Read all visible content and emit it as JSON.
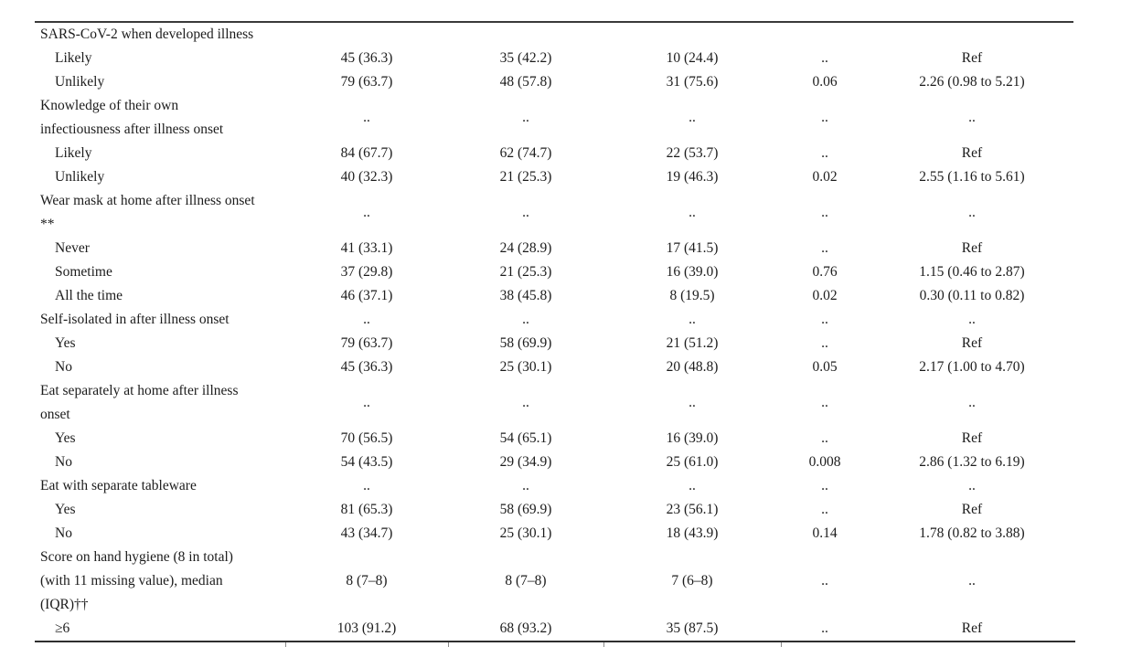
{
  "document": {
    "kind": "journal-article-table-fragment",
    "text_color": "#1c1c1c",
    "rule_color": "#2e2e2e",
    "background": "#ffffff"
  },
  "table": {
    "columns_note": "column headers are cropped out of view; five data columns follow the row label",
    "rows": [
      {
        "label": "SARS-CoV-2 when developed illness",
        "indent": false,
        "lines": 1,
        "cells": [
          "",
          "",
          "",
          "",
          ""
        ]
      },
      {
        "label": "Likely",
        "indent": true,
        "lines": 1,
        "cells": [
          "45 (36.3)",
          "35 (42.2)",
          "10 (24.4)",
          "..",
          "Ref"
        ]
      },
      {
        "label": "Unlikely",
        "indent": true,
        "lines": 1,
        "cells": [
          "79 (63.7)",
          "48 (57.8)",
          "31 (75.6)",
          "0.06",
          "2.26 (0.98 to 5.21)"
        ]
      },
      {
        "label": "Knowledge of their own\ninfectiousness after illness onset",
        "indent": false,
        "lines": 2,
        "cells": [
          "..",
          "..",
          "..",
          "..",
          ".."
        ]
      },
      {
        "label": "Likely",
        "indent": true,
        "lines": 1,
        "cells": [
          "84 (67.7)",
          "62 (74.7)",
          "22 (53.7)",
          "..",
          "Ref"
        ]
      },
      {
        "label": "Unlikely",
        "indent": true,
        "lines": 1,
        "cells": [
          "40 (32.3)",
          "21 (25.3)",
          "19 (46.3)",
          "0.02",
          "2.55 (1.16 to 5.61)"
        ]
      },
      {
        "label": "Wear mask at home after illness onset\n**",
        "indent": false,
        "lines": 2,
        "cells": [
          "..",
          "..",
          "..",
          "..",
          ".."
        ]
      },
      {
        "label": "Never",
        "indent": true,
        "lines": 1,
        "cells": [
          "41 (33.1)",
          "24 (28.9)",
          "17 (41.5)",
          "..",
          "Ref"
        ]
      },
      {
        "label": "Sometime",
        "indent": true,
        "lines": 1,
        "cells": [
          "37 (29.8)",
          "21 (25.3)",
          "16 (39.0)",
          "0.76",
          "1.15 (0.46 to 2.87)"
        ]
      },
      {
        "label": "All the time",
        "indent": true,
        "lines": 1,
        "cells": [
          "46 (37.1)",
          "38 (45.8)",
          "8 (19.5)",
          "0.02",
          "0.30 (0.11 to 0.82)"
        ]
      },
      {
        "label": "Self-isolated in after illness onset",
        "indent": false,
        "lines": 1,
        "cells": [
          "..",
          "..",
          "..",
          "..",
          ".."
        ]
      },
      {
        "label": "Yes",
        "indent": true,
        "lines": 1,
        "cells": [
          "79 (63.7)",
          "58 (69.9)",
          "21 (51.2)",
          "..",
          "Ref"
        ]
      },
      {
        "label": "No",
        "indent": true,
        "lines": 1,
        "cells": [
          "45 (36.3)",
          "25 (30.1)",
          "20 (48.8)",
          "0.05",
          "2.17 (1.00 to 4.70)"
        ]
      },
      {
        "label": "Eat separately at home after illness\nonset",
        "indent": false,
        "lines": 2,
        "cells": [
          "..",
          "..",
          "..",
          "..",
          ".."
        ]
      },
      {
        "label": "Yes",
        "indent": true,
        "lines": 1,
        "cells": [
          "70 (56.5)",
          "54 (65.1)",
          "16 (39.0)",
          "..",
          "Ref"
        ]
      },
      {
        "label": "No",
        "indent": true,
        "lines": 1,
        "cells": [
          "54 (43.5)",
          "29 (34.9)",
          "25 (61.0)",
          "0.008",
          "2.86 (1.32 to 6.19)"
        ]
      },
      {
        "label": "Eat with separate tableware",
        "indent": false,
        "lines": 1,
        "cells": [
          "..",
          "..",
          "..",
          "..",
          ".."
        ]
      },
      {
        "label": "Yes",
        "indent": true,
        "lines": 1,
        "cells": [
          "81 (65.3)",
          "58 (69.9)",
          "23 (56.1)",
          "..",
          "Ref"
        ]
      },
      {
        "label": "No",
        "indent": true,
        "lines": 1,
        "cells": [
          "43 (34.7)",
          "25 (30.1)",
          "18 (43.9)",
          "0.14",
          "1.78 (0.82 to 3.88)"
        ]
      },
      {
        "label": "Score on hand hygiene (8 in total)\n(with 11 missing value), median\n(IQR)††",
        "indent": false,
        "lines": 3,
        "cells": [
          "8 (7–8)",
          "8 (7–8)",
          "7 (6–8)",
          "..",
          ".."
        ]
      },
      {
        "label": "≥6",
        "indent": true,
        "lines": 1,
        "cells": [
          "103 (91.2)",
          "68 (93.2)",
          "35 (87.5)",
          "..",
          "Ref"
        ]
      }
    ],
    "bottom_rule_ticks_x": [
      274,
      452,
      622,
      816
    ]
  }
}
